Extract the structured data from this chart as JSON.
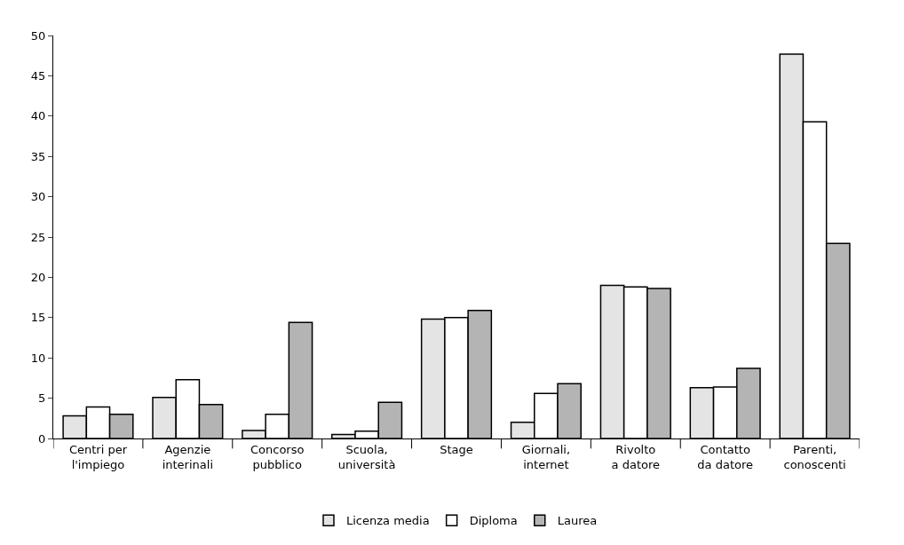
{
  "chart_data": {
    "type": "bar",
    "categories": [
      "Centri per\nl'impiego",
      "Agenzie\ninterinali",
      "Concorso\npubblico",
      "Scuola,\nuniversità",
      "Stage",
      "Giornali,\ninternet",
      "Rivolto\na datore",
      "Contatto\nda datore",
      "Parenti,\nconoscenti"
    ],
    "series": [
      {
        "name": "Licenza media",
        "color": "#e4e4e4",
        "values": [
          2.8,
          5.1,
          1.0,
          0.5,
          14.8,
          2.0,
          19.0,
          6.3,
          47.7
        ]
      },
      {
        "name": "Diploma",
        "color": "#ffffff",
        "values": [
          3.9,
          7.3,
          3.0,
          0.9,
          15.0,
          5.6,
          18.8,
          6.4,
          39.3
        ]
      },
      {
        "name": "Laurea",
        "color": "#b4b4b4",
        "values": [
          3.0,
          4.2,
          14.4,
          4.5,
          15.9,
          6.8,
          18.6,
          8.7,
          24.2
        ]
      }
    ],
    "ylim": [
      0,
      50
    ],
    "yticks": [
      0,
      5,
      10,
      15,
      20,
      25,
      30,
      35,
      40,
      45,
      50
    ],
    "legend": "bottom"
  }
}
